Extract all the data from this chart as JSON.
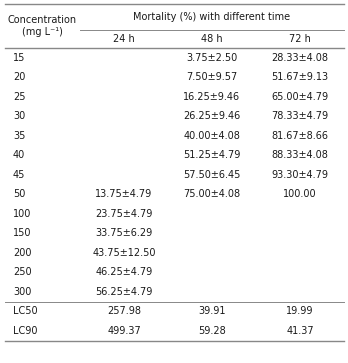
{
  "col_header_left": "Concentration\n(mg L⁻¹)",
  "col_header_merged": "Mortality (%) with different time",
  "col_headers_sub": [
    "24 h",
    "48 h",
    "72 h"
  ],
  "rows": [
    [
      "15",
      "",
      "3.75±2.50",
      "28.33±4.08"
    ],
    [
      "20",
      "",
      "7.50±9.57",
      "51.67±9.13"
    ],
    [
      "25",
      "",
      "16.25±9.46",
      "65.00±4.79"
    ],
    [
      "30",
      "",
      "26.25±9.46",
      "78.33±4.79"
    ],
    [
      "35",
      "",
      "40.00±4.08",
      "81.67±8.66"
    ],
    [
      "40",
      "",
      "51.25±4.79",
      "88.33±4.08"
    ],
    [
      "45",
      "",
      "57.50±6.45",
      "93.30±4.79"
    ],
    [
      "50",
      "13.75±4.79",
      "75.00±4.08",
      "100.00"
    ],
    [
      "100",
      "23.75±4.79",
      "",
      ""
    ],
    [
      "150",
      "33.75±6.29",
      "",
      ""
    ],
    [
      "200",
      "43.75±12.50",
      "",
      ""
    ],
    [
      "250",
      "46.25±4.79",
      "",
      ""
    ],
    [
      "300",
      "56.25±4.79",
      "",
      ""
    ],
    [
      "LC50",
      "257.98",
      "39.91",
      "19.99"
    ],
    [
      "LC90",
      "499.37",
      "59.28",
      "41.37"
    ]
  ],
  "font_size": 7.0,
  "bg_color": "#ffffff",
  "text_color": "#1a1a1a",
  "line_color": "#888888"
}
